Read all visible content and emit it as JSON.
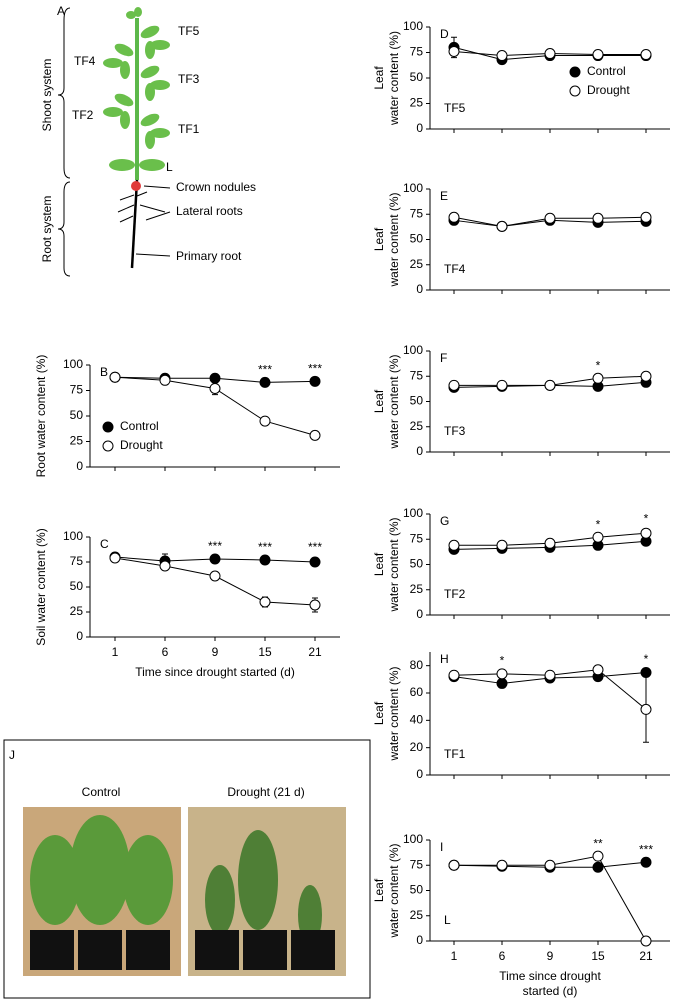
{
  "panel_a": {
    "letter": "A",
    "shoot": "Shoot system",
    "root": "Root system",
    "tf": [
      "TF5",
      "TF4",
      "TF3",
      "TF2",
      "TF1"
    ],
    "leaf": "L",
    "crown": "Crown nodules",
    "lateral": "Lateral roots",
    "primary": "Primary root"
  },
  "chart_data": [
    {
      "type": "line",
      "letter": "B",
      "ylabel": "Root water content (%)",
      "ylim": [
        0,
        100
      ],
      "yticks": [
        0,
        25,
        50,
        75,
        100
      ],
      "legend": "lower left",
      "annotations": [
        null,
        null,
        null,
        "***",
        "***"
      ],
      "series": [
        {
          "name": "Control",
          "color": "#000000",
          "values": [
            88,
            87,
            87,
            83,
            84
          ],
          "errors": [
            4,
            2,
            2,
            2,
            2
          ]
        },
        {
          "name": "Drought",
          "color": "#ffffff",
          "values": [
            88,
            85,
            77,
            45,
            31
          ],
          "errors": [
            4,
            2,
            6,
            2,
            2
          ]
        }
      ]
    },
    {
      "type": "line",
      "letter": "C",
      "ylabel": "Soil water content (%)",
      "xlabel": [
        "Time since drought started (d)"
      ],
      "categories": [
        "1",
        "6",
        "9",
        "15",
        "21"
      ],
      "ylim": [
        0,
        100
      ],
      "yticks": [
        0,
        25,
        50,
        75,
        100
      ],
      "annotations": [
        null,
        null,
        "***",
        "***",
        "***"
      ],
      "series": [
        {
          "name": "Control",
          "color": "#000000",
          "values": [
            80,
            76,
            78,
            77,
            75
          ],
          "errors": [
            2,
            7,
            2,
            2,
            4
          ]
        },
        {
          "name": "Drought",
          "color": "#ffffff",
          "values": [
            79,
            71,
            61,
            35,
            32
          ],
          "errors": [
            2,
            2,
            2,
            5,
            7
          ]
        }
      ]
    },
    {
      "type": "line",
      "letter": "D",
      "tag": "TF5",
      "ylabel": [
        "Leaf",
        "water content (%)"
      ],
      "ylim": [
        0,
        100
      ],
      "yticks": [
        0,
        25,
        50,
        75,
        100
      ],
      "legend": "upper right",
      "series": [
        {
          "name": "Control",
          "color": "#000000",
          "values": [
            80,
            68,
            72,
            72,
            72
          ],
          "errors": [
            10,
            3,
            2,
            2,
            2
          ]
        },
        {
          "name": "Drought",
          "color": "#ffffff",
          "values": [
            76,
            72,
            74,
            73,
            73
          ],
          "errors": [
            3,
            2,
            2,
            2,
            2
          ]
        }
      ]
    },
    {
      "type": "line",
      "letter": "E",
      "tag": "TF4",
      "ylabel": [
        "Leaf",
        "water content (%)"
      ],
      "ylim": [
        0,
        100
      ],
      "yticks": [
        0,
        25,
        50,
        75,
        100
      ],
      "series": [
        {
          "name": "Control",
          "color": "#000000",
          "values": [
            69,
            63,
            69,
            67,
            68
          ],
          "errors": [
            2,
            2,
            2,
            2,
            2
          ]
        },
        {
          "name": "Drought",
          "color": "#ffffff",
          "values": [
            72,
            63,
            71,
            71,
            72
          ],
          "errors": [
            2,
            2,
            2,
            2,
            2
          ]
        }
      ]
    },
    {
      "type": "line",
      "letter": "F",
      "tag": "TF3",
      "ylabel": [
        "Leaf",
        "water content (%)"
      ],
      "ylim": [
        0,
        100
      ],
      "yticks": [
        0,
        25,
        50,
        75,
        100
      ],
      "annotations": [
        null,
        null,
        null,
        "*",
        null
      ],
      "series": [
        {
          "name": "Control",
          "color": "#000000",
          "values": [
            64,
            65,
            66,
            65,
            69
          ],
          "errors": [
            2,
            2,
            2,
            2,
            2
          ]
        },
        {
          "name": "Drought",
          "color": "#ffffff",
          "values": [
            66,
            66,
            66,
            73,
            75
          ],
          "errors": [
            2,
            2,
            2,
            2,
            2
          ]
        }
      ]
    },
    {
      "type": "line",
      "letter": "G",
      "tag": "TF2",
      "ylabel": [
        "Leaf",
        "water content (%)"
      ],
      "ylim": [
        0,
        100
      ],
      "yticks": [
        0,
        25,
        50,
        75,
        100
      ],
      "annotations": [
        null,
        null,
        null,
        "*",
        "*"
      ],
      "series": [
        {
          "name": "Control",
          "color": "#000000",
          "values": [
            65,
            66,
            67,
            69,
            73
          ],
          "errors": [
            2,
            2,
            2,
            2,
            2
          ]
        },
        {
          "name": "Drought",
          "color": "#ffffff",
          "values": [
            69,
            69,
            71,
            77,
            81
          ],
          "errors": [
            2,
            2,
            4,
            2,
            4
          ]
        }
      ]
    },
    {
      "type": "line",
      "letter": "H",
      "tag": "TF1",
      "ylabel": [
        "Leaf",
        "water content (%)"
      ],
      "ylim": [
        0,
        90
      ],
      "yticks": [
        0,
        20,
        40,
        60,
        80
      ],
      "annotations": [
        null,
        "*",
        null,
        null,
        "*"
      ],
      "series": [
        {
          "name": "Control",
          "color": "#000000",
          "values": [
            72,
            67,
            71,
            72,
            75
          ],
          "errors": [
            2,
            2,
            2,
            2,
            2
          ]
        },
        {
          "name": "Drought",
          "color": "#ffffff",
          "values": [
            73,
            74,
            73,
            77,
            48
          ],
          "errors": [
            2,
            2,
            2,
            2,
            24
          ]
        }
      ]
    },
    {
      "type": "line",
      "letter": "I",
      "tag": "L",
      "ylabel": [
        "Leaf",
        "water content (%)"
      ],
      "xlabel": [
        "Time since drought",
        "started (d)"
      ],
      "categories": [
        "1",
        "6",
        "9",
        "15",
        "21"
      ],
      "ylim": [
        0,
        100
      ],
      "yticks": [
        0,
        25,
        50,
        75,
        100
      ],
      "annotations": [
        null,
        null,
        null,
        "**",
        "***"
      ],
      "series": [
        {
          "name": "Control",
          "color": "#000000",
          "values": [
            75,
            74,
            73,
            73,
            78
          ],
          "errors": [
            2,
            2,
            2,
            2,
            2
          ]
        },
        {
          "name": "Drought",
          "color": "#ffffff",
          "values": [
            75,
            75,
            75,
            84,
            0
          ],
          "errors": [
            2,
            2,
            2,
            2,
            1
          ]
        }
      ]
    }
  ],
  "panel_j": {
    "letter": "J",
    "control": "Control",
    "drought": "Drought (21 d)"
  }
}
